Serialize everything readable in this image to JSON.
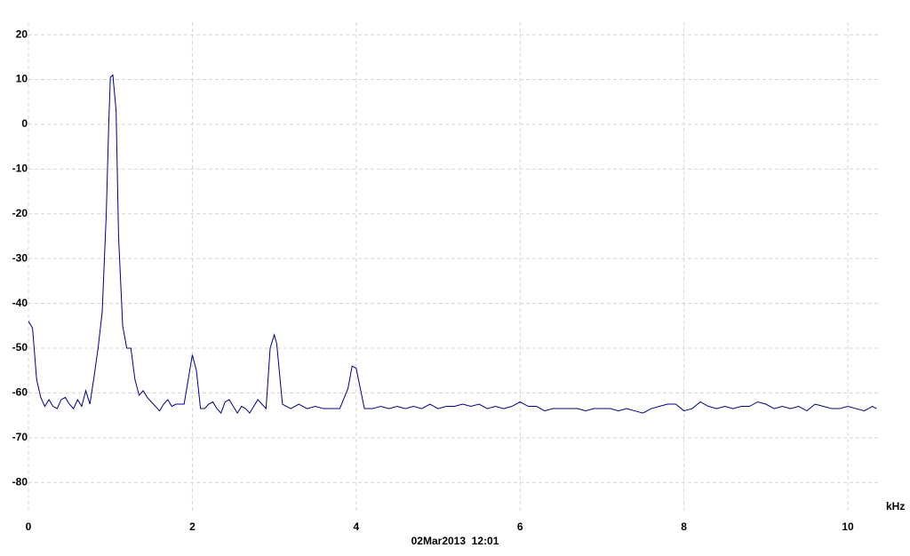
{
  "chart_data": {
    "type": "line",
    "x_label": "kHz",
    "timestamp": "02Mar2013  12:01",
    "xlim": [
      0,
      10.39
    ],
    "ylim": [
      -86.7,
      22.8
    ],
    "xticks": [
      0,
      2,
      4,
      6,
      8,
      10
    ],
    "yticks": [
      20,
      10,
      0,
      -10,
      -20,
      -30,
      -40,
      -50,
      -60,
      -70,
      -80
    ],
    "grid": true,
    "x": [
      0,
      0.05,
      0.1,
      0.15,
      0.2,
      0.25,
      0.3,
      0.35,
      0.4,
      0.45,
      0.5,
      0.55,
      0.6,
      0.65,
      0.7,
      0.75,
      0.8,
      0.85,
      0.9,
      0.95,
      0.98,
      1.0,
      1.03,
      1.07,
      1.1,
      1.15,
      1.2,
      1.25,
      1.3,
      1.35,
      1.4,
      1.45,
      1.5,
      1.55,
      1.6,
      1.65,
      1.7,
      1.75,
      1.8,
      1.85,
      1.9,
      1.95,
      2.0,
      2.05,
      2.1,
      2.15,
      2.2,
      2.25,
      2.3,
      2.35,
      2.4,
      2.45,
      2.5,
      2.55,
      2.6,
      2.65,
      2.7,
      2.75,
      2.8,
      2.85,
      2.9,
      2.95,
      3.0,
      3.03,
      3.1,
      3.15,
      3.2,
      3.3,
      3.4,
      3.5,
      3.6,
      3.7,
      3.8,
      3.9,
      3.95,
      4.0,
      4.05,
      4.1,
      4.2,
      4.3,
      4.4,
      4.5,
      4.6,
      4.7,
      4.8,
      4.9,
      5.0,
      5.1,
      5.2,
      5.3,
      5.4,
      5.5,
      5.6,
      5.7,
      5.8,
      5.9,
      6.0,
      6.1,
      6.2,
      6.3,
      6.4,
      6.5,
      6.6,
      6.7,
      6.8,
      6.9,
      7.0,
      7.1,
      7.2,
      7.3,
      7.4,
      7.5,
      7.6,
      7.7,
      7.8,
      7.9,
      8.0,
      8.1,
      8.2,
      8.3,
      8.4,
      8.5,
      8.6,
      8.7,
      8.8,
      8.9,
      9.0,
      9.1,
      9.2,
      9.3,
      9.4,
      9.5,
      9.6,
      9.7,
      9.8,
      9.9,
      10.0,
      10.1,
      10.2,
      10.3,
      10.35
    ],
    "series": [
      {
        "color": "#000080",
        "values": [
          -44,
          -45.5,
          -57,
          -61,
          -63,
          -61.5,
          -63,
          -63.5,
          -61.5,
          -61,
          -62.5,
          -63.5,
          -61.5,
          -63,
          -59.5,
          -62.5,
          -56.5,
          -50,
          -42,
          -20,
          0,
          10.5,
          11,
          3,
          -25,
          -45,
          -50,
          -50,
          -57,
          -60.5,
          -59.5,
          -61,
          -62,
          -63,
          -64,
          -62.5,
          -61.5,
          -63,
          -62.5,
          -62.5,
          -62.5,
          -57,
          -51.5,
          -55,
          -63.5,
          -63.5,
          -62.5,
          -62,
          -63.5,
          -64.5,
          -62,
          -61.5,
          -63,
          -64.5,
          -63,
          -63.5,
          -64.5,
          -63,
          -61.5,
          -62.5,
          -63.5,
          -50,
          -47,
          -49,
          -62.5,
          -63,
          -63.5,
          -62.5,
          -63.5,
          -63,
          -63.5,
          -63.5,
          -63.5,
          -59,
          -54,
          -54.5,
          -59,
          -63.5,
          -63.5,
          -63,
          -63.5,
          -63,
          -63.5,
          -63,
          -63.5,
          -62.5,
          -63.5,
          -63,
          -63,
          -62.5,
          -63,
          -62.5,
          -63.5,
          -63,
          -63.5,
          -63,
          -62,
          -63,
          -63,
          -64,
          -63.5,
          -63.5,
          -63.5,
          -63.5,
          -64,
          -63.5,
          -63.5,
          -63.5,
          -64,
          -63.5,
          -64,
          -64.5,
          -63.5,
          -63,
          -62.5,
          -62.5,
          -64,
          -63.5,
          -62,
          -63,
          -63.5,
          -63,
          -63.5,
          -63,
          -63,
          -62,
          -62.5,
          -63.5,
          -63,
          -63.5,
          -63,
          -64,
          -62.5,
          -63,
          -63.5,
          -63.5,
          -63,
          -63.5,
          -64,
          -63,
          -63.5
        ]
      }
    ]
  }
}
